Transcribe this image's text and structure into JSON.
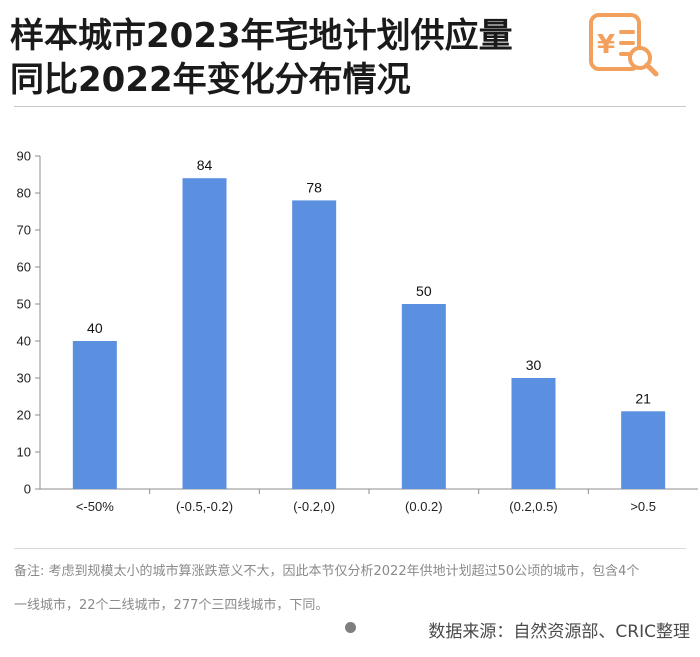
{
  "header": {
    "title_line1": "样本城市2023年宅地计划供应量",
    "title_line2": "同比2022年变化分布情况"
  },
  "logo": {
    "icon": "yuan-document-search-icon",
    "glyph": "¥",
    "color": "#f2a05c"
  },
  "chart_data": {
    "type": "bar",
    "categories": [
      "<-50%",
      "(-0.5,-0.2)",
      "(-0.2,0)",
      "(0.0.2)",
      "(0.2,0.5)",
      ">0.5"
    ],
    "values": [
      40,
      84,
      78,
      50,
      30,
      21
    ],
    "yticks": [
      0,
      10,
      20,
      30,
      40,
      50,
      60,
      70,
      80,
      90
    ],
    "ylim": [
      0,
      90
    ],
    "title": "",
    "xlabel": "",
    "ylabel": "",
    "bar_color": "#5b8fe0",
    "grid": false
  },
  "footer": {
    "note_line1": "备注: 考虑到规模太小的城市算涨跌意义不大，因此本节仅分析2022年供地计划超过50公顷的城市，包含4个",
    "note_line2": "一线城市，22个二线城市，277个三四线城市，下同。",
    "source": "数据来源：自然资源部、CRIC整理"
  }
}
